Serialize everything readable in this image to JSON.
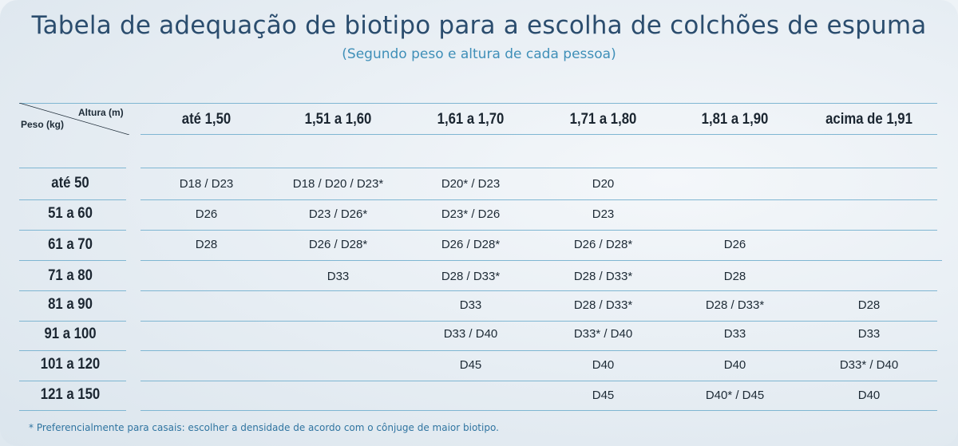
{
  "title": "Tabela de adequação de biotipo para a escolha de colchões de espuma",
  "subtitle": "(Segundo peso e altura de cada pessoa)",
  "corner": {
    "col_label": "Altura (m)",
    "row_label": "Peso (kg)"
  },
  "columns": [
    "até 1,50",
    "1,51 a 1,60",
    "1,61 a 1,70",
    "1,71 a 1,80",
    "1,81 a 1,90",
    "acima de 1,91"
  ],
  "rows": [
    {
      "label": "até 50",
      "cells": [
        "D18 / D23",
        "D18 / D20 / D23*",
        "D20* / D23",
        "D20",
        "",
        ""
      ]
    },
    {
      "label": "51 a 60",
      "cells": [
        "D26",
        "D23 / D26*",
        "D23* / D26",
        "D23",
        "",
        ""
      ]
    },
    {
      "label": "61 a 70",
      "cells": [
        "D28",
        "D26 / D28*",
        "D26 / D28*",
        "D26 / D28*",
        "D26",
        ""
      ]
    },
    {
      "label": "71 a 80",
      "cells": [
        "",
        "D33",
        "D28 / D33*",
        "D28 / D33*",
        "D28",
        ""
      ]
    },
    {
      "label": "81 a 90",
      "cells": [
        "",
        "",
        "D33",
        "D28 / D33*",
        "D28 / D33*",
        "D28"
      ]
    },
    {
      "label": "91 a 100",
      "cells": [
        "",
        "",
        "D33 / D40",
        "D33* / D40",
        "D33",
        "D33"
      ]
    },
    {
      "label": "101 a 120",
      "cells": [
        "",
        "",
        "D45",
        "D40",
        "D40",
        "D33* / D40"
      ]
    },
    {
      "label": "121 a 150",
      "cells": [
        "",
        "",
        "",
        "D45",
        "D40* / D45",
        "D40"
      ]
    }
  ],
  "footnote": "* Preferencialmente para casais: escolher a densidade de acordo com o cônjuge de maior biotipo."
}
